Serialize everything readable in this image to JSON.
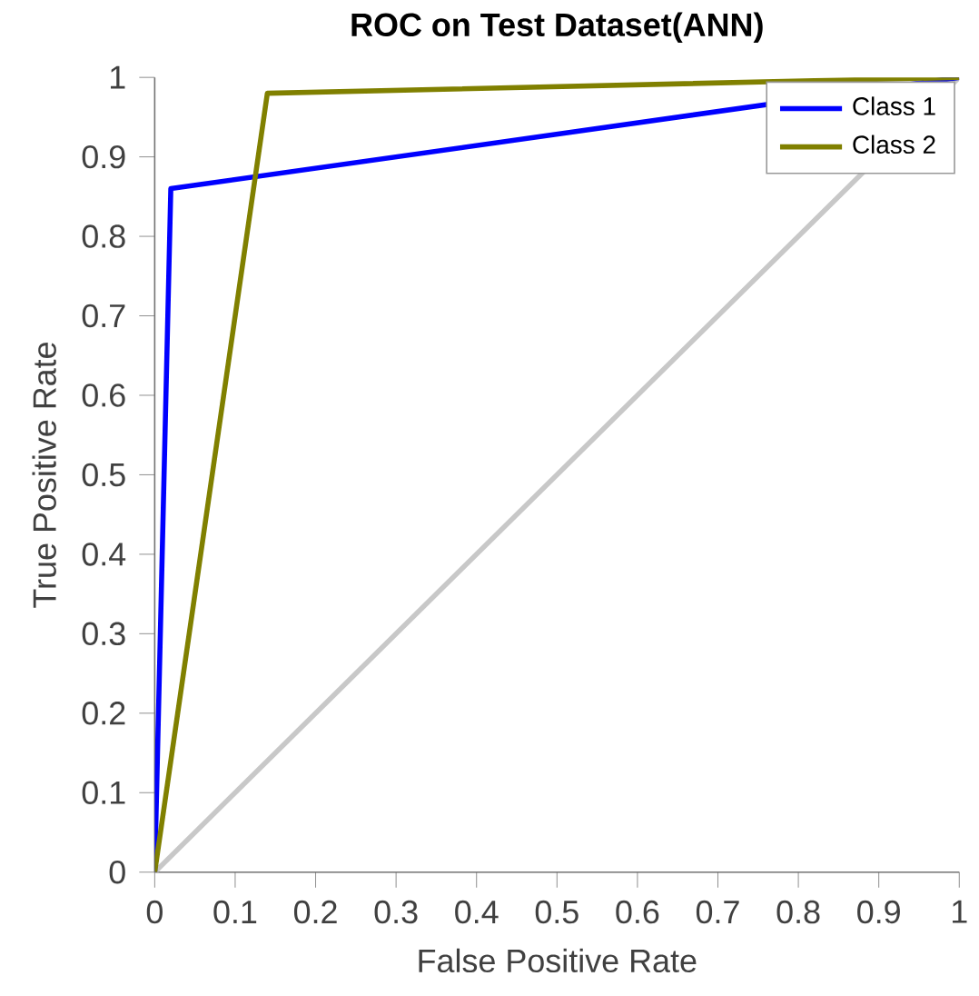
{
  "chart_data": {
    "type": "line",
    "title": "ROC on Test Dataset(ANN)",
    "xlabel": "False Positive Rate",
    "ylabel": "True Positive Rate",
    "xlim": [
      0,
      1
    ],
    "ylim": [
      0,
      1
    ],
    "xticks": [
      0,
      0.1,
      0.2,
      0.3,
      0.4,
      0.5,
      0.6,
      0.7,
      0.8,
      0.9,
      1
    ],
    "yticks": [
      0,
      0.1,
      0.2,
      0.3,
      0.4,
      0.5,
      0.6,
      0.7,
      0.8,
      0.9,
      1
    ],
    "series": [
      {
        "name": "Class 1",
        "color": "#0000ff",
        "x": [
          0,
          0.02,
          1
        ],
        "values": [
          0,
          0.86,
          1
        ]
      },
      {
        "name": "Class 2",
        "color": "#808000",
        "x": [
          0,
          0.14,
          1
        ],
        "values": [
          0,
          0.98,
          1
        ]
      },
      {
        "color": "#c8c8c8",
        "x": [
          0,
          1
        ],
        "values": [
          0,
          1
        ]
      }
    ],
    "legend": "top right",
    "grid": false,
    "marker": "none",
    "line_style": "solid"
  }
}
